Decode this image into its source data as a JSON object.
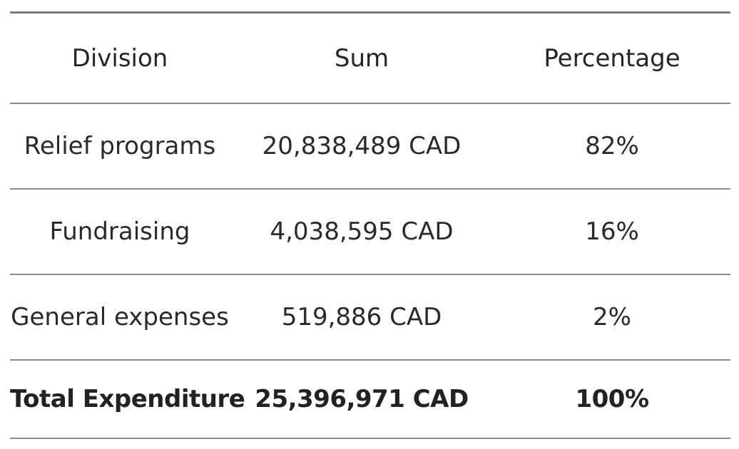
{
  "table": {
    "headers": {
      "division": "Division",
      "sum": "Sum",
      "percentage": "Percentage"
    },
    "rows": [
      {
        "division": "Relief programs",
        "sum": "20,838,489 CAD",
        "percentage": "82%"
      },
      {
        "division": "Fundraising",
        "sum": "4,038,595 CAD",
        "percentage": "16%"
      },
      {
        "division": "General expenses",
        "sum": "519,886 CAD",
        "percentage": "2%"
      }
    ],
    "total": {
      "division": "Total Expenditure",
      "sum": "25,396,971 CAD",
      "percentage": "100%"
    }
  }
}
